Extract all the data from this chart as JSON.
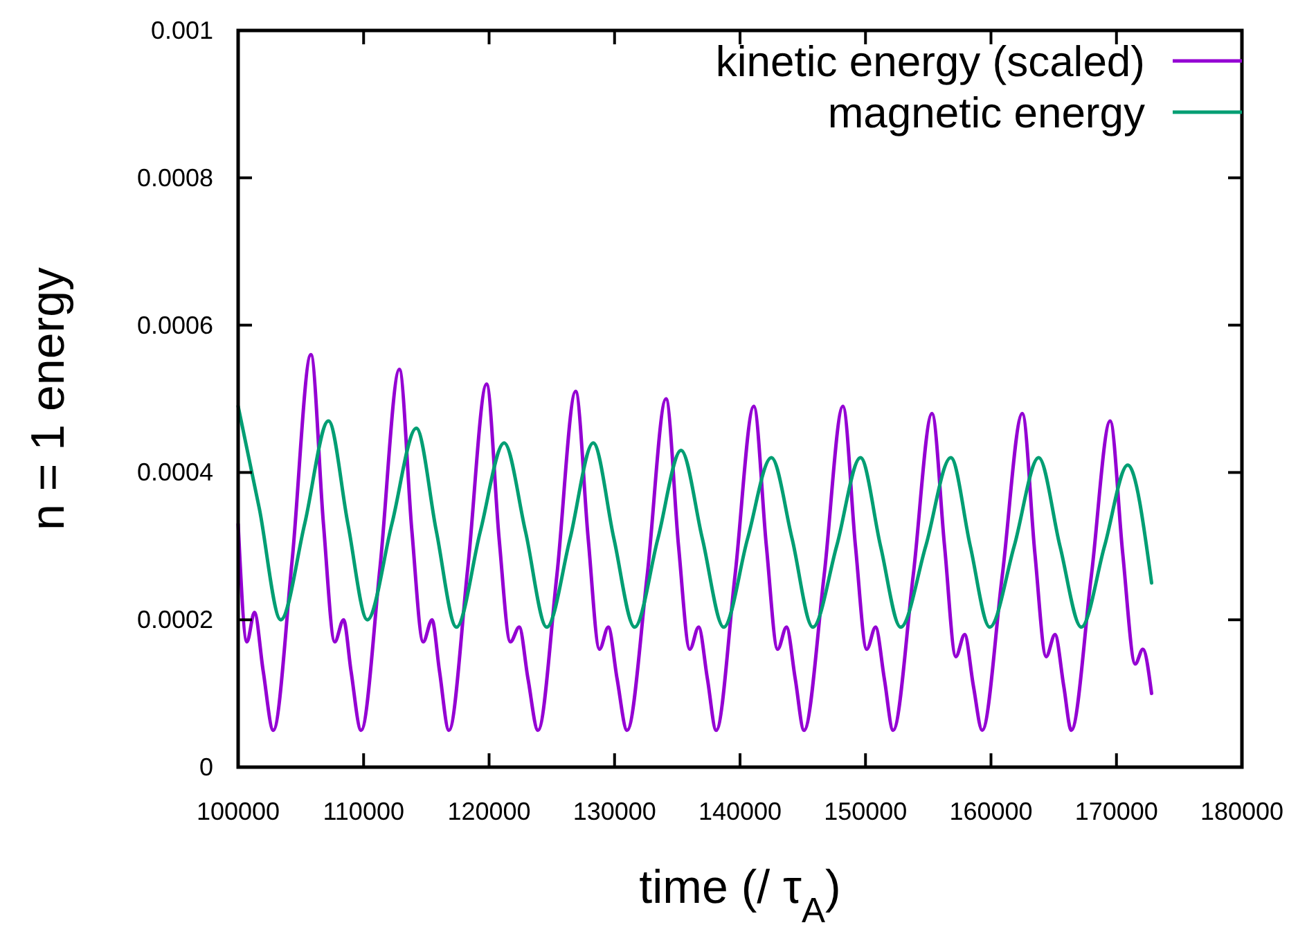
{
  "chart_data": {
    "type": "line",
    "xlabel": "time (/ τ$_{A}$)",
    "ylabel": "n = 1 energy",
    "xlim": [
      100000,
      180000
    ],
    "xticks": [
      100000,
      110000,
      120000,
      130000,
      140000,
      150000,
      160000,
      170000,
      180000
    ],
    "ylim": [
      0,
      0.001
    ],
    "yticks": [
      {
        "value": 0,
        "label": "0"
      },
      {
        "value": 0.0002,
        "label": "0.0002"
      },
      {
        "value": 0.0004,
        "label": "0.0004"
      },
      {
        "value": 0.0006,
        "label": "0.0006"
      },
      {
        "value": 0.0008,
        "label": "0.0008"
      },
      {
        "value": 0.001,
        "label": "0.001"
      }
    ],
    "grid": false,
    "legend": "top right",
    "marker": "none",
    "line_style": "solid",
    "series": [
      {
        "name": "kinetic energy (scaled)",
        "color": "#9400d3",
        "x": [
          100000,
          100700,
          101300,
          102000,
          102800,
          104300,
          105800,
          106800,
          107700,
          108400,
          109000,
          109800,
          111300,
          112850,
          113850,
          114750,
          115450,
          116050,
          116800,
          118300,
          119800,
          120800,
          121700,
          122400,
          123100,
          123900,
          125400,
          126900,
          127900,
          128800,
          129500,
          130200,
          131000,
          132600,
          134100,
          135100,
          136000,
          136700,
          137400,
          138100,
          139600,
          141100,
          142100,
          143000,
          143700,
          144400,
          145100,
          146700,
          148200,
          149200,
          150100,
          150800,
          151500,
          152200,
          153800,
          155300,
          156300,
          157200,
          157900,
          158600,
          159300,
          160900,
          162500,
          163500,
          164400,
          165100,
          165800,
          166400,
          168000,
          169500,
          170500,
          171500,
          172100,
          172800
        ],
        "values": [
          0.00033,
          0.00017,
          0.00021,
          0.00013,
          5e-05,
          0.00028,
          0.00056,
          0.00033,
          0.00017,
          0.0002,
          0.00013,
          5e-05,
          0.00027,
          0.00054,
          0.00032,
          0.00017,
          0.0002,
          0.00013,
          5e-05,
          0.00027,
          0.00052,
          0.00031,
          0.00017,
          0.00019,
          0.00012,
          5e-05,
          0.00026,
          0.00051,
          0.00031,
          0.00016,
          0.00019,
          0.00012,
          5e-05,
          0.00026,
          0.0005,
          0.0003,
          0.00016,
          0.00019,
          0.00012,
          5e-05,
          0.00026,
          0.00049,
          0.0003,
          0.00016,
          0.00019,
          0.00012,
          5e-05,
          0.00026,
          0.00049,
          0.0003,
          0.00016,
          0.00019,
          0.00012,
          5e-05,
          0.00026,
          0.00048,
          0.0003,
          0.00015,
          0.00018,
          0.00011,
          5e-05,
          0.00026,
          0.00048,
          0.00029,
          0.00015,
          0.00018,
          0.00011,
          5e-05,
          0.00026,
          0.00047,
          0.00029,
          0.00014,
          0.00016,
          0.0001
        ]
      },
      {
        "name": "magnetic energy",
        "color": "#009e73",
        "x": [
          100000,
          101700,
          103400,
          105300,
          107200,
          108750,
          110300,
          112250,
          114200,
          115800,
          117400,
          119300,
          121200,
          122900,
          124600,
          126450,
          128300,
          129950,
          131600,
          133450,
          135300,
          137000,
          138700,
          140600,
          142500,
          144150,
          145800,
          147700,
          149600,
          151200,
          152800,
          154800,
          156800,
          158350,
          159900,
          161850,
          163800,
          165500,
          167200,
          169050,
          170900,
          172800
        ],
        "values": [
          0.00049,
          0.00035,
          0.0002,
          0.00033,
          0.00047,
          0.00033,
          0.0002,
          0.00033,
          0.00046,
          0.00032,
          0.00019,
          0.00032,
          0.00044,
          0.00032,
          0.00019,
          0.00031,
          0.00044,
          0.00031,
          0.00019,
          0.00031,
          0.00043,
          0.00031,
          0.00019,
          0.00031,
          0.00042,
          0.00031,
          0.00019,
          0.0003,
          0.00042,
          0.0003,
          0.00019,
          0.0003,
          0.00042,
          0.0003,
          0.00019,
          0.0003,
          0.00042,
          0.0003,
          0.00019,
          0.0003,
          0.00041,
          0.00025
        ]
      }
    ]
  }
}
